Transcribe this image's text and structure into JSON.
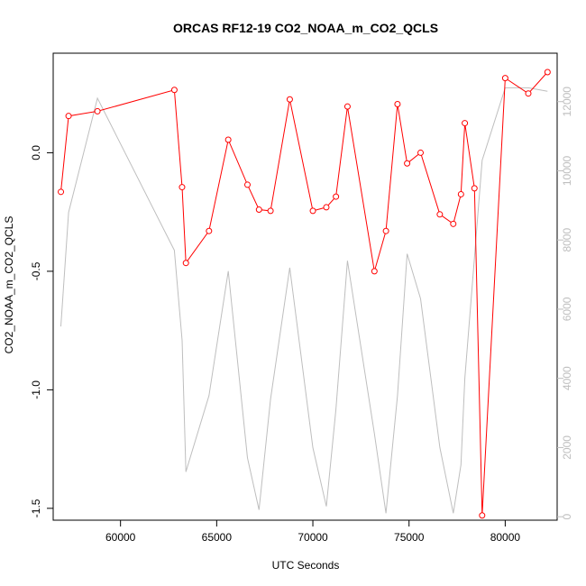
{
  "chart_data": {
    "type": "line",
    "title": "ORCAS RF12-19 CO2_NOAA_m_CO2_QCLS",
    "xlabel": "UTC Seconds",
    "ylabel": "CO2_NOAA_m_CO2_QCLS",
    "y2label": "",
    "xlim": [
      56500,
      82700
    ],
    "ylim": [
      -1.55,
      0.42
    ],
    "y2lim": [
      -100,
      13400
    ],
    "x_ticks": [
      60000,
      65000,
      70000,
      75000,
      80000
    ],
    "x_tick_labels": [
      "60000",
      "65000",
      "70000",
      "75000",
      "80000"
    ],
    "y_ticks": [
      -1.5,
      -1.0,
      -0.5,
      0.0
    ],
    "y_tick_labels": [
      "-1.5",
      "-1.0",
      "-0.5",
      "0.0"
    ],
    "y2_ticks": [
      0,
      2000,
      4000,
      6000,
      8000,
      10000,
      12000
    ],
    "y2_tick_labels": [
      "0",
      "2000",
      "4000",
      "6000",
      "8000",
      "10000",
      "12000"
    ],
    "grid": false,
    "series": [
      {
        "axis": "left",
        "color": "#ff0000",
        "markers": "open-circle",
        "x": [
          56900,
          57300,
          58800,
          62800,
          63200,
          63400,
          64600,
          65600,
          66600,
          67200,
          67800,
          68800,
          70000,
          70700,
          71200,
          71800,
          73200,
          73800,
          74400,
          74900,
          75600,
          76600,
          77300,
          77700,
          77900,
          78400,
          78800,
          80000,
          81200,
          82200
        ],
        "y": [
          -0.165,
          0.155,
          0.175,
          0.265,
          -0.145,
          -0.465,
          -0.33,
          0.055,
          -0.135,
          -0.24,
          -0.245,
          0.225,
          -0.245,
          -0.23,
          -0.185,
          0.195,
          -0.5,
          -0.33,
          0.205,
          -0.045,
          0.0,
          -0.26,
          -0.3,
          -0.175,
          0.125,
          -0.15,
          -1.53,
          0.315,
          0.25,
          0.34
        ]
      },
      {
        "axis": "right",
        "color": "#bebebe",
        "markers": "none",
        "x": [
          56900,
          57300,
          58800,
          62800,
          63200,
          63400,
          64600,
          65600,
          66600,
          67200,
          67800,
          68800,
          70000,
          70700,
          71200,
          71800,
          73200,
          73800,
          74400,
          74900,
          75600,
          76600,
          77300,
          77700,
          77900,
          78400,
          78800,
          80000,
          81200,
          82200
        ],
        "y": [
          5500,
          8800,
          12100,
          7700,
          5100,
          1300,
          3500,
          7100,
          1700,
          200,
          3400,
          7200,
          2000,
          300,
          3100,
          7400,
          2400,
          100,
          3500,
          7600,
          6300,
          2000,
          100,
          1500,
          4000,
          7500,
          10300,
          12400,
          12400,
          12300
        ]
      }
    ]
  }
}
